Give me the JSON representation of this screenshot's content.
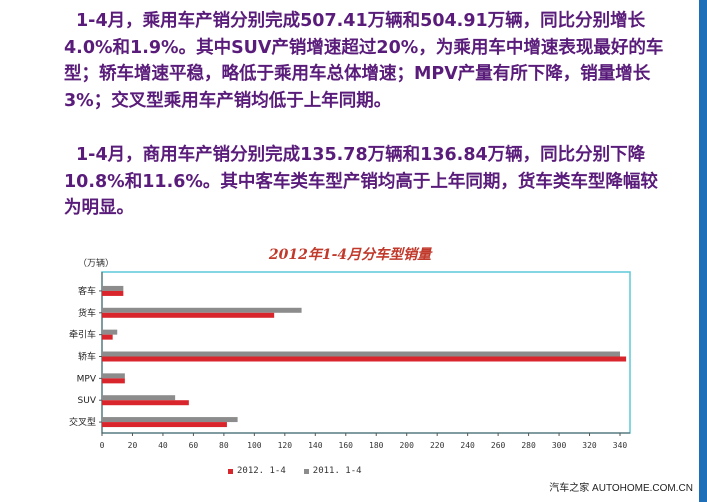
{
  "paragraphs": {
    "p1": "1-4月，乘用车产销分别完成507.41万辆和504.91万辆，同比分别增长4.0%和1.9%。其中SUV产销增速超过20%，为乘用车中增速表现最好的车型；轿车增速平稳，略低于乘用车总体增速；MPV产量有所下降，销量增长3%；交叉型乘用车产销均低于上年同期。",
    "p2": "1-4月，商用车产销分别完成135.78万辆和136.84万辆，同比分别下降10.8%和11.6%。其中客车类车型产销均高于上年同期，货车类车型降幅较为明显。"
  },
  "colors": {
    "text": "#5a1c7a",
    "series_2012": "#d9262c",
    "series_2011": "#8c8c8c",
    "plot_border": "#5bc8d8",
    "slide_border": "#1f6fb8"
  },
  "chart_data": {
    "type": "bar",
    "orientation": "horizontal",
    "title": "2012年1-4月分车型销量",
    "unit": "（万辆）",
    "categories": [
      "客车",
      "货车",
      "牵引车",
      "轿车",
      "MPV",
      "SUV",
      "交叉型"
    ],
    "series": [
      {
        "name": "2011.1-4",
        "values": [
          14,
          131,
          10,
          340,
          15,
          48,
          89
        ]
      },
      {
        "name": "2012.1-4",
        "values": [
          14,
          113,
          7,
          344,
          15,
          57,
          82
        ]
      }
    ],
    "xlim": [
      0,
      340
    ],
    "xticks": [
      0,
      20,
      40,
      60,
      80,
      100,
      120,
      140,
      160,
      180,
      200,
      220,
      240,
      260,
      280,
      300,
      320,
      340
    ],
    "legend": [
      {
        "label": "2012. 1-4",
        "color_key": "series_2012"
      },
      {
        "label": "2011. 1-4",
        "color_key": "series_2011"
      }
    ],
    "legend_position": "bottom"
  },
  "watermark": "汽车之家 AUTOHOME.COM.CN"
}
